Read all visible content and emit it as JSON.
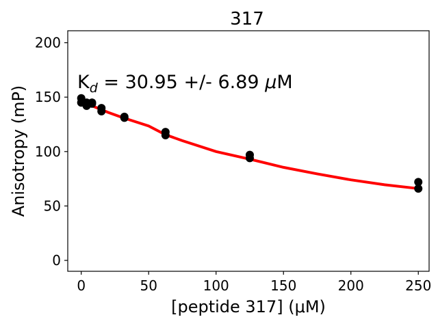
{
  "chart_data": {
    "type": "scatter",
    "title": "317",
    "xlabel": "[peptide 317] (μM)",
    "ylabel": "Anisotropy (mP)",
    "xlim": [
      -10,
      258
    ],
    "ylim": [
      -10,
      211
    ],
    "xticks": [
      0,
      50,
      100,
      150,
      200,
      250
    ],
    "yticks": [
      0,
      50,
      100,
      150,
      200
    ],
    "grid": false,
    "legend": "none",
    "annotation": {
      "prefix": "K",
      "subscript": "d",
      "value_text": " = 30.95 +/- 6.89 ",
      "mu": "μ",
      "unit": "M"
    },
    "series": [
      {
        "kind": "points",
        "color": "#000000",
        "points": [
          {
            "x": 0,
            "y": 149
          },
          {
            "x": 0,
            "y": 145
          },
          {
            "x": 4,
            "y": 145
          },
          {
            "x": 4,
            "y": 142
          },
          {
            "x": 8,
            "y": 145
          },
          {
            "x": 8,
            "y": 144
          },
          {
            "x": 15,
            "y": 140
          },
          {
            "x": 15,
            "y": 137
          },
          {
            "x": 32,
            "y": 132
          },
          {
            "x": 32,
            "y": 131
          },
          {
            "x": 62.5,
            "y": 118
          },
          {
            "x": 62.5,
            "y": 115
          },
          {
            "x": 125,
            "y": 97
          },
          {
            "x": 125,
            "y": 94
          },
          {
            "x": 250,
            "y": 72
          },
          {
            "x": 250,
            "y": 66
          }
        ]
      },
      {
        "kind": "fit",
        "color": "#ff0000",
        "x": [
          0,
          10,
          20,
          30,
          40,
          50,
          62.5,
          75,
          100,
          125,
          150,
          175,
          200,
          225,
          250
        ],
        "y": [
          146,
          141,
          136,
          131.5,
          127.5,
          123.5,
          115.5,
          110,
          100,
          93,
          85.5,
          79.5,
          74,
          69.5,
          66
        ]
      }
    ]
  }
}
